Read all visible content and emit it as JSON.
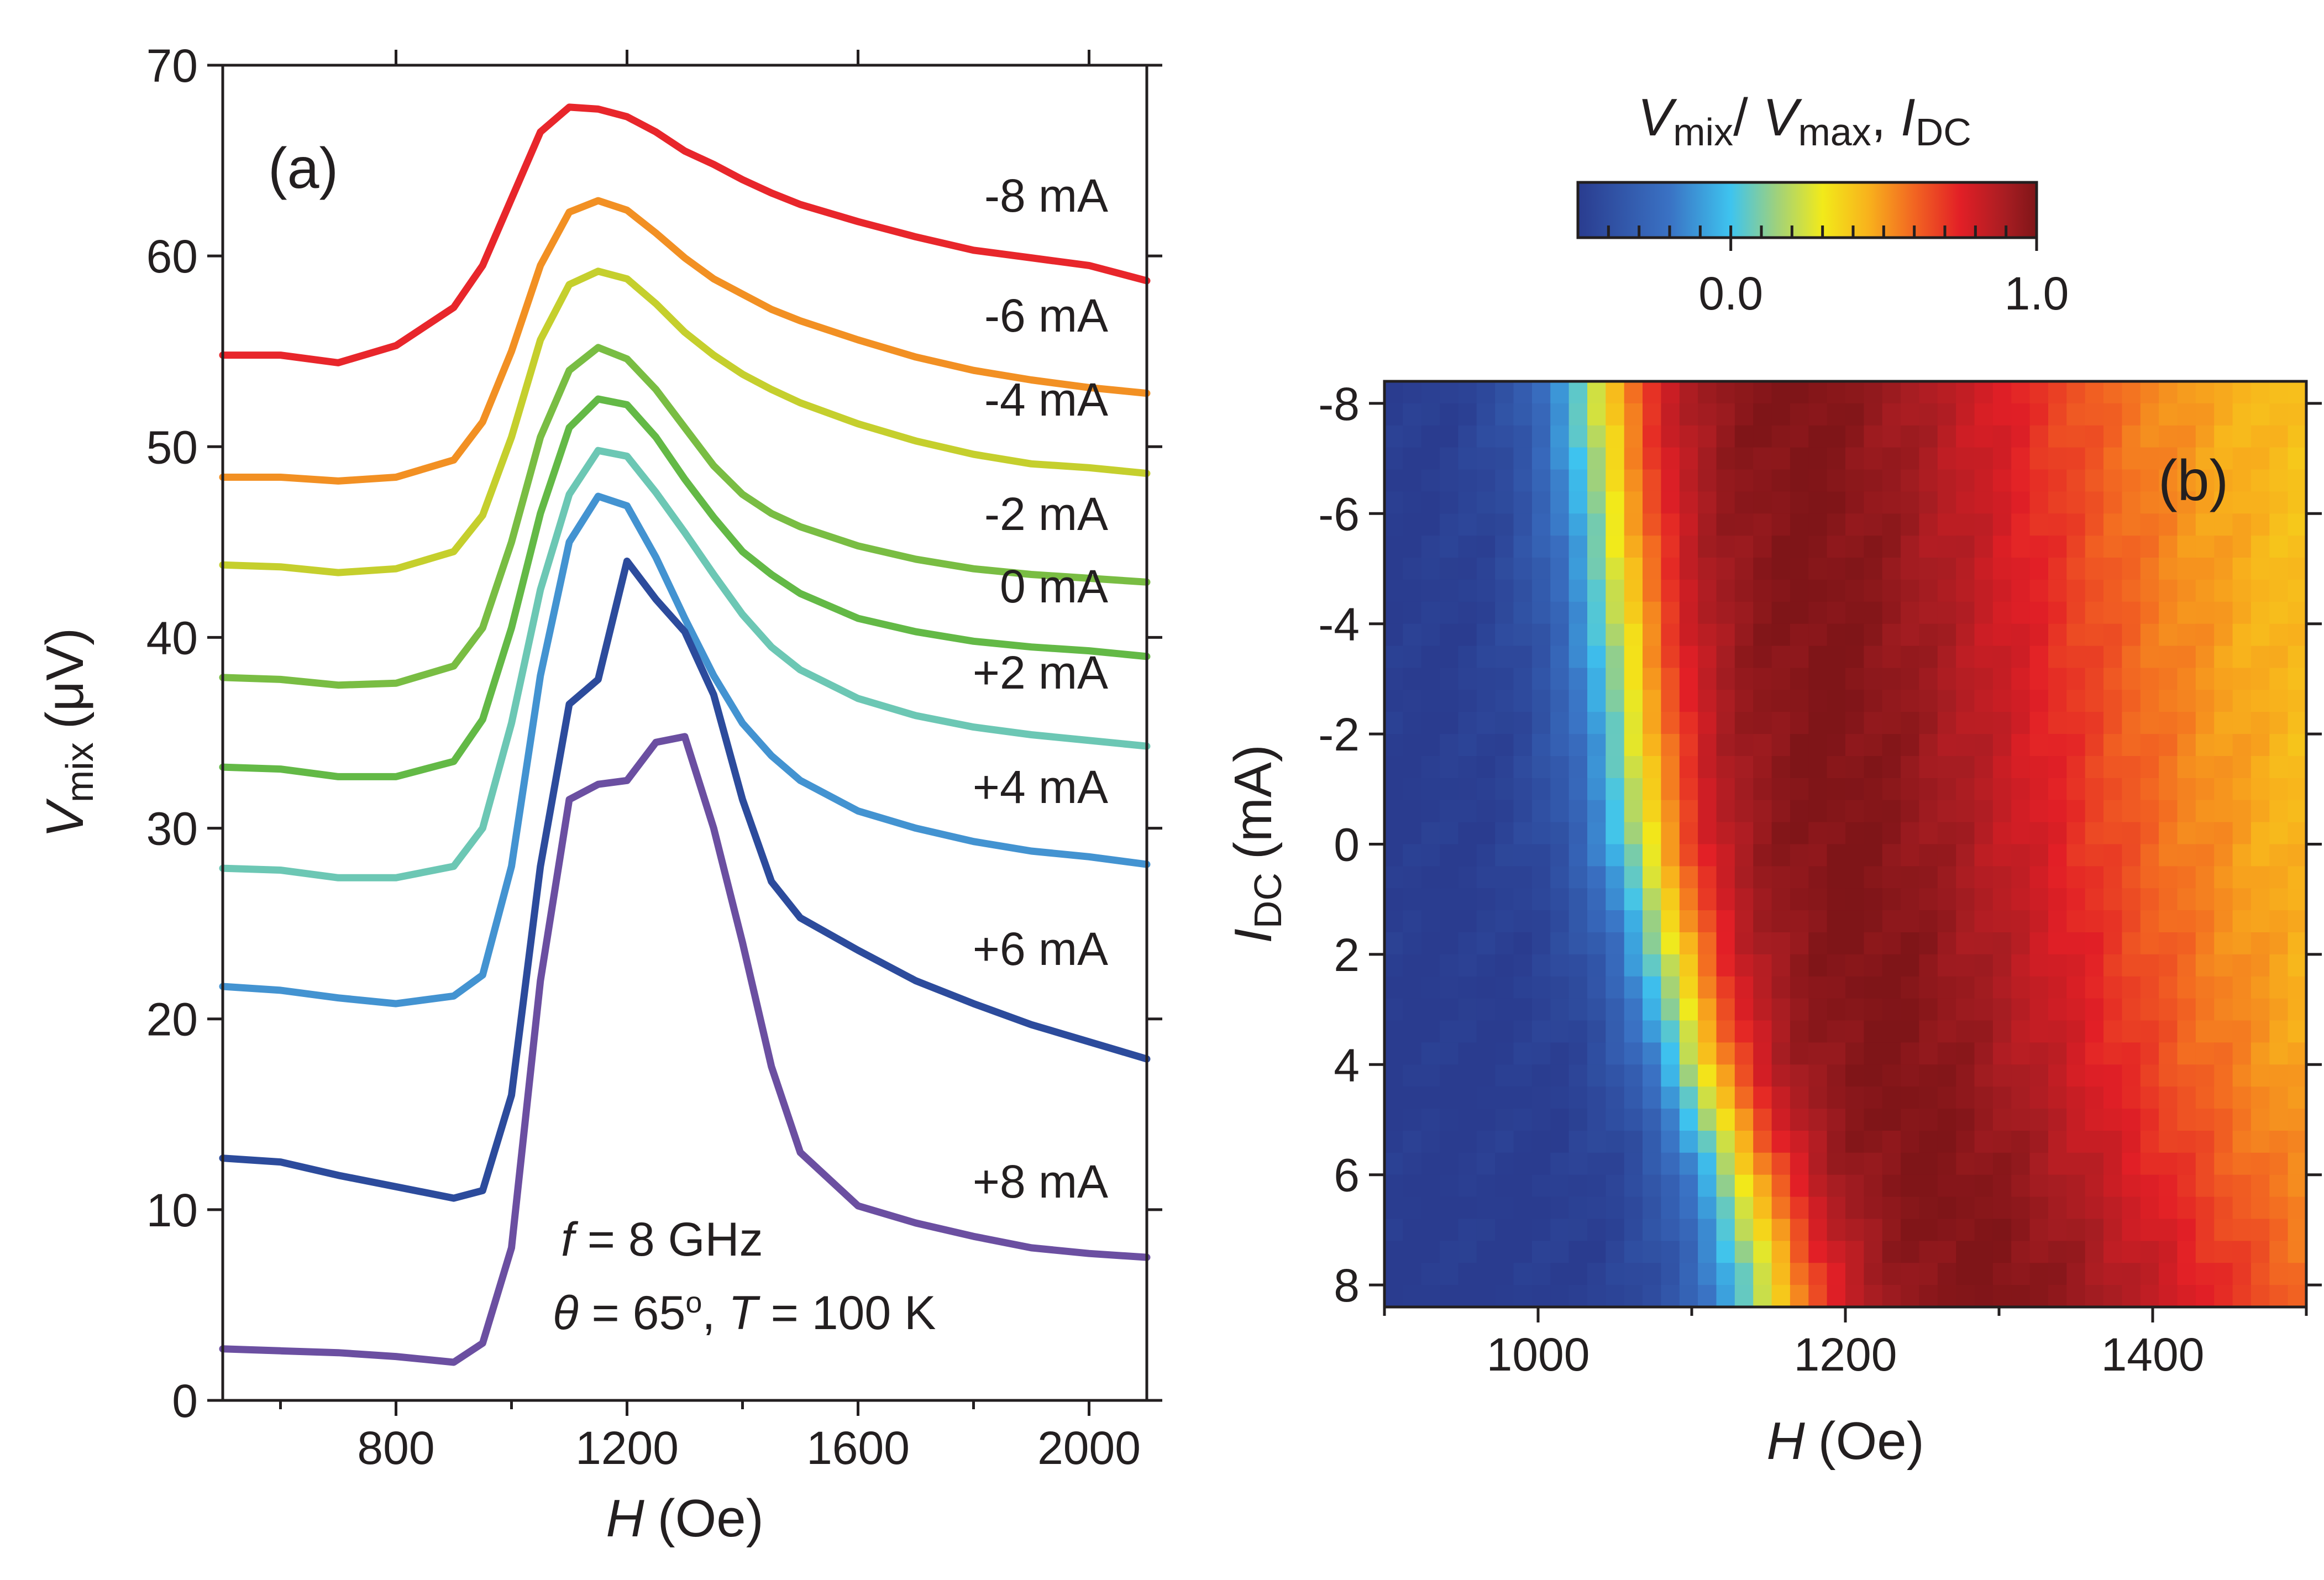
{
  "chart_data": [
    {
      "type": "line",
      "panel_label": "(a)",
      "xlabel": "H",
      "xlabel_unit": "(Oe)",
      "ylabel": "V",
      "ylabel_sub": "mix",
      "ylabel_unit": "(μV)",
      "xlim": [
        500,
        2100
      ],
      "ylim": [
        0,
        70
      ],
      "xticks": [
        "800",
        "1200",
        "1600",
        "2000"
      ],
      "xtick_values": [
        800,
        1200,
        1600,
        2000
      ],
      "yticks": [
        "0",
        "10",
        "20",
        "30",
        "40",
        "50",
        "60",
        "70"
      ],
      "ytick_values": [
        0,
        10,
        20,
        30,
        40,
        50,
        60,
        70
      ],
      "annotation": {
        "line1_var": "f",
        "line1_rest": " = 8 GHz",
        "line2_var1": "θ",
        "line2_mid": " = 65",
        "line2_sup": "o",
        "line2_sep": ", ",
        "line2_var2": "T",
        "line2_rest": " = 100 K"
      },
      "x": [
        500,
        600,
        700,
        800,
        900,
        950,
        1000,
        1050,
        1100,
        1150,
        1200,
        1250,
        1300,
        1350,
        1400,
        1450,
        1500,
        1600,
        1700,
        1800,
        1900,
        2000,
        2100
      ],
      "series": [
        {
          "name": "-8 mA",
          "color": "#e8262b",
          "values": [
            54.8,
            54.8,
            54.4,
            55.3,
            57.3,
            59.5,
            63.0,
            66.5,
            67.8,
            67.7,
            67.3,
            66.5,
            65.5,
            64.8,
            64.0,
            63.3,
            62.7,
            61.8,
            61.0,
            60.3,
            59.9,
            59.5,
            58.7
          ]
        },
        {
          "name": "-6 mA",
          "color": "#f29023",
          "values": [
            48.4,
            48.4,
            48.2,
            48.4,
            49.3,
            51.3,
            55.0,
            59.5,
            62.3,
            62.9,
            62.4,
            61.2,
            59.9,
            58.8,
            58.0,
            57.2,
            56.6,
            55.6,
            54.7,
            54.0,
            53.5,
            53.1,
            52.8
          ]
        },
        {
          "name": "-4 mA",
          "color": "#c5cf2d",
          "values": [
            43.8,
            43.7,
            43.4,
            43.6,
            44.5,
            46.4,
            50.5,
            55.6,
            58.5,
            59.2,
            58.8,
            57.5,
            56.0,
            54.8,
            53.8,
            53.0,
            52.3,
            51.2,
            50.3,
            49.6,
            49.1,
            48.9,
            48.6
          ]
        },
        {
          "name": "-2 mA",
          "color": "#79bd43",
          "values": [
            37.9,
            37.8,
            37.5,
            37.6,
            38.5,
            40.5,
            45.0,
            50.5,
            54.0,
            55.2,
            54.6,
            53.0,
            51.0,
            49.0,
            47.5,
            46.5,
            45.8,
            44.8,
            44.1,
            43.6,
            43.3,
            43.1,
            42.9
          ]
        },
        {
          "name": "0 mA",
          "color": "#63b946",
          "values": [
            33.2,
            33.1,
            32.7,
            32.7,
            33.5,
            35.7,
            40.5,
            46.5,
            51.0,
            52.5,
            52.2,
            50.5,
            48.3,
            46.3,
            44.5,
            43.3,
            42.3,
            41.0,
            40.3,
            39.8,
            39.5,
            39.3,
            39.0
          ]
        },
        {
          "name": "+2 mA",
          "color": "#6cc7b4",
          "values": [
            27.9,
            27.8,
            27.4,
            27.4,
            28.0,
            30.0,
            35.5,
            42.5,
            47.5,
            49.8,
            49.5,
            47.6,
            45.5,
            43.3,
            41.2,
            39.5,
            38.3,
            36.8,
            35.9,
            35.3,
            34.9,
            34.6,
            34.3
          ]
        },
        {
          "name": "+4 mA",
          "color": "#4393d1",
          "values": [
            21.7,
            21.5,
            21.1,
            20.8,
            21.2,
            22.3,
            28.0,
            38.0,
            45.0,
            47.4,
            46.9,
            44.2,
            41.0,
            38.0,
            35.5,
            33.8,
            32.5,
            30.9,
            30.0,
            29.3,
            28.8,
            28.5,
            28.1
          ]
        },
        {
          "name": "+6 mA",
          "color": "#2c4b9c",
          "values": [
            12.7,
            12.5,
            11.8,
            11.2,
            10.6,
            11.0,
            16.0,
            28.0,
            36.5,
            37.8,
            44.0,
            42.0,
            40.3,
            37.0,
            31.5,
            27.2,
            25.3,
            23.6,
            22.0,
            20.8,
            19.7,
            18.8,
            17.9
          ]
        },
        {
          "name": "+8 mA",
          "color": "#6b4fa1",
          "values": [
            2.7,
            2.6,
            2.5,
            2.3,
            2.0,
            3.0,
            8.0,
            22.0,
            31.5,
            32.3,
            32.5,
            34.5,
            34.8,
            30.0,
            24.0,
            17.5,
            13.0,
            10.2,
            9.3,
            8.6,
            8.0,
            7.7,
            7.5
          ]
        }
      ]
    },
    {
      "type": "heatmap",
      "panel_label": "(b)",
      "xlabel": "H",
      "xlabel_unit": "(Oe)",
      "ylabel": "I",
      "ylabel_sub": "DC",
      "ylabel_unit": "(mA)",
      "xlim": [
        900,
        1500
      ],
      "ylim_top_to_bottom": [
        -8.4,
        8.4
      ],
      "xticks": [
        "1000",
        "1200",
        "1400"
      ],
      "xtick_values": [
        1000,
        1200,
        1400
      ],
      "yticks": [
        "-8",
        "-6",
        "-4",
        "-2",
        "0",
        "2",
        "4",
        "6",
        "8"
      ],
      "ytick_values": [
        -8,
        -6,
        -4,
        -2,
        0,
        2,
        4,
        6,
        8
      ],
      "x_step": 12,
      "y_step": 0.4,
      "peak_position_model": {
        "center_H_at_Idc": {
          "-8": 1155,
          "0": 1185,
          "4": 1215,
          "6": 1245,
          "8": 1280
        },
        "rise_H_at_Idc": {
          "-8": 1010,
          "0": 1040,
          "4": 1075,
          "6": 1100,
          "8": 1115
        },
        "low_tail_value": -0.5,
        "high_tail_value": 0.35
      },
      "colorbar": {
        "title_var1": "V",
        "title_sub1": "mix",
        "title_slash": "/ ",
        "title_var2": "V",
        "title_sub2": "max",
        "title_sep": ", ",
        "title_var3": "I",
        "title_sub3": "DC",
        "range": [
          -0.5,
          1.0
        ],
        "ticks": [
          "0.0",
          "1.0"
        ],
        "tick_values": [
          0.0,
          1.0
        ],
        "minor_tick_step": 0.1,
        "colormap": [
          [
            -0.5,
            "#2a3c8f"
          ],
          [
            -0.2,
            "#3a72c4"
          ],
          [
            0.0,
            "#3ec4ef"
          ],
          [
            0.15,
            "#9fd17c"
          ],
          [
            0.3,
            "#f2ea1a"
          ],
          [
            0.45,
            "#f8b21c"
          ],
          [
            0.6,
            "#f26522"
          ],
          [
            0.75,
            "#e21f26"
          ],
          [
            0.9,
            "#a71d22"
          ],
          [
            1.0,
            "#7f1518"
          ]
        ]
      }
    }
  ]
}
